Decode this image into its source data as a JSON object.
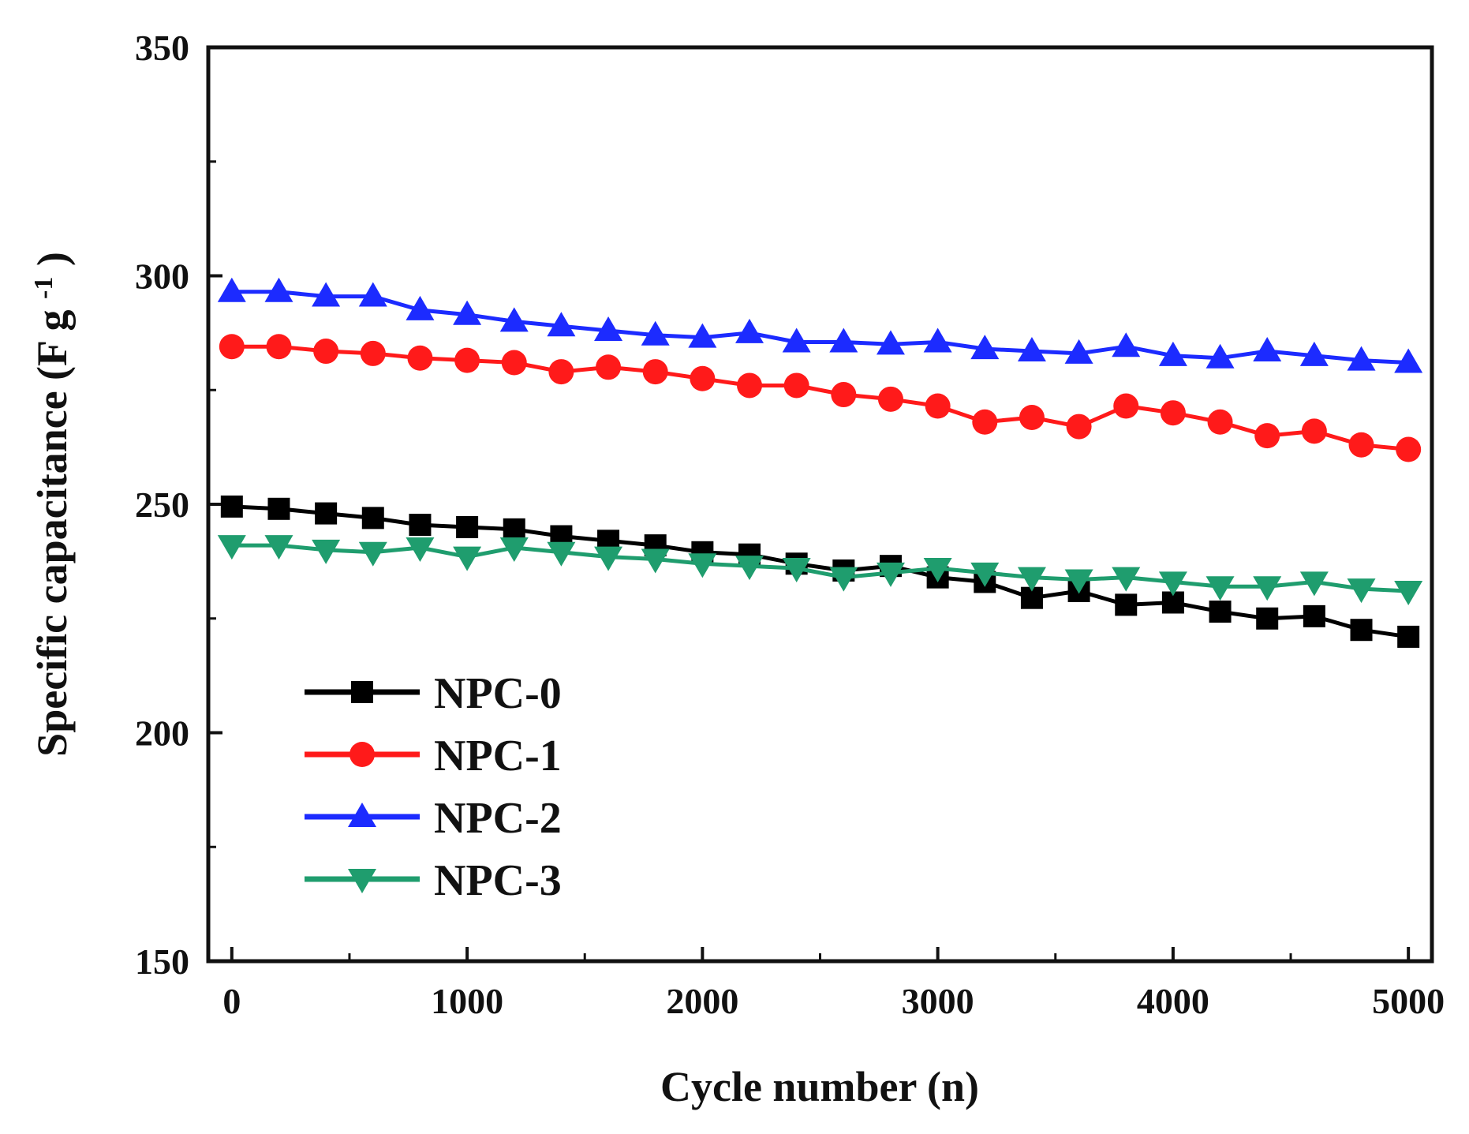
{
  "chart_data": {
    "type": "line",
    "xlabel": "Cycle number (n)",
    "ylabel": {
      "main": "Specific capacitance (F g",
      "sup": "-1",
      "close": ")"
    },
    "xlim": [
      -100,
      5100
    ],
    "ylim": [
      150,
      350
    ],
    "x_ticks": [
      0,
      1000,
      2000,
      3000,
      4000,
      5000
    ],
    "y_ticks": [
      150,
      200,
      250,
      300,
      350
    ],
    "x_minor_step": 500,
    "y_minor_step": 25,
    "grid": false,
    "legend_position": "bottom-left",
    "x": [
      0,
      200,
      400,
      600,
      800,
      1000,
      1200,
      1400,
      1600,
      1800,
      2000,
      2200,
      2400,
      2600,
      2800,
      3000,
      3200,
      3400,
      3600,
      3800,
      4000,
      4200,
      4400,
      4600,
      4800,
      5000
    ],
    "series": [
      {
        "name": "NPC-0",
        "color": "#000000",
        "marker": "square",
        "values": [
          249.5,
          249,
          248,
          247,
          245.5,
          245,
          244.5,
          243,
          242,
          241,
          239.5,
          239,
          237,
          235.5,
          236.5,
          234,
          233,
          229.5,
          231,
          228,
          228.5,
          226.5,
          225,
          225.5,
          222.5,
          221
        ]
      },
      {
        "name": "NPC-1",
        "color": "#ff1a1a",
        "marker": "circle",
        "values": [
          284.5,
          284.5,
          283.5,
          283,
          282,
          281.5,
          281,
          279,
          280,
          279,
          277.5,
          276,
          276,
          274,
          273,
          271.5,
          268,
          269,
          267,
          271.5,
          270,
          268,
          265,
          266,
          263,
          262
        ]
      },
      {
        "name": "NPC-2",
        "color": "#1c2bff",
        "marker": "triangle-up",
        "values": [
          296.5,
          296.5,
          295.5,
          295.5,
          292.5,
          291.5,
          290,
          289,
          288,
          287,
          286.5,
          287.5,
          285.5,
          285.5,
          285,
          285.5,
          284,
          283.5,
          283,
          284.5,
          282.5,
          282,
          283.5,
          282.5,
          281.5,
          281
        ]
      },
      {
        "name": "NPC-3",
        "color": "#1f9d6e",
        "marker": "triangle-down",
        "values": [
          241,
          241,
          240,
          239.5,
          240.5,
          238.5,
          240.5,
          239.5,
          238.5,
          238,
          237,
          236.5,
          236,
          234,
          235,
          236,
          235,
          234,
          233.5,
          234,
          233,
          232,
          232,
          233,
          231.5,
          231
        ]
      }
    ]
  }
}
